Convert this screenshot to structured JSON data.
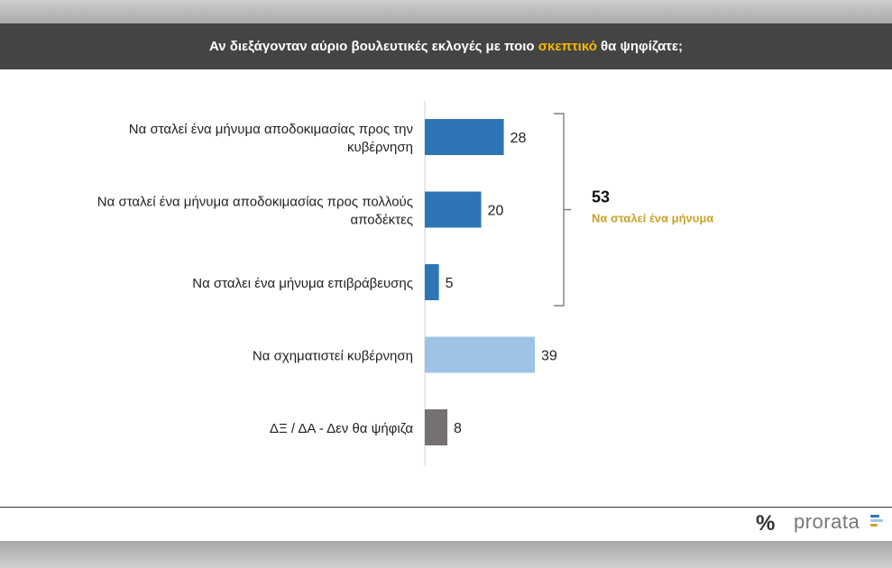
{
  "header": {
    "title_before": "Αν διεξάγονταν αύριο βουλευτικές εκλογές με ποιο ",
    "title_highlight": "σκεπτικό",
    "title_after": " θα ψηφίζατε;"
  },
  "chart_data": {
    "type": "bar",
    "orientation": "horizontal",
    "title": "Αν διεξάγονταν αύριο βουλευτικές εκλογές με ποιο σκεπτικό θα ψηφίζατε;",
    "categories": [
      [
        "Να σταλεί ένα μήνυμα αποδοκιμασίας προς την",
        "κυβέρνηση"
      ],
      [
        "Να σταλεί ένα μήνυμα αποδοκιμασίας προς πολλούς",
        "αποδέκτες"
      ],
      [
        "Να σταλει ένα μήνυμα επιβράβευσης"
      ],
      [
        "Να σχηματιστεί κυβέρνηση"
      ],
      [
        "ΔΞ / ΔΑ - Δεν θα ψήφιζα"
      ]
    ],
    "values": [
      28,
      20,
      5,
      39,
      8
    ],
    "bar_colors": [
      "#2e75b6",
      "#2e75b6",
      "#2e75b6",
      "#9dc3e6",
      "#767171"
    ],
    "xlim": [
      0,
      45
    ],
    "grid": false,
    "bracket": {
      "value": "53",
      "label": "Να σταλεί ένα μήνυμα",
      "label_color": "#c9a227",
      "spans_categories": [
        0,
        1,
        2
      ]
    }
  },
  "logo": {
    "symbol": "%",
    "text": "prorata"
  }
}
